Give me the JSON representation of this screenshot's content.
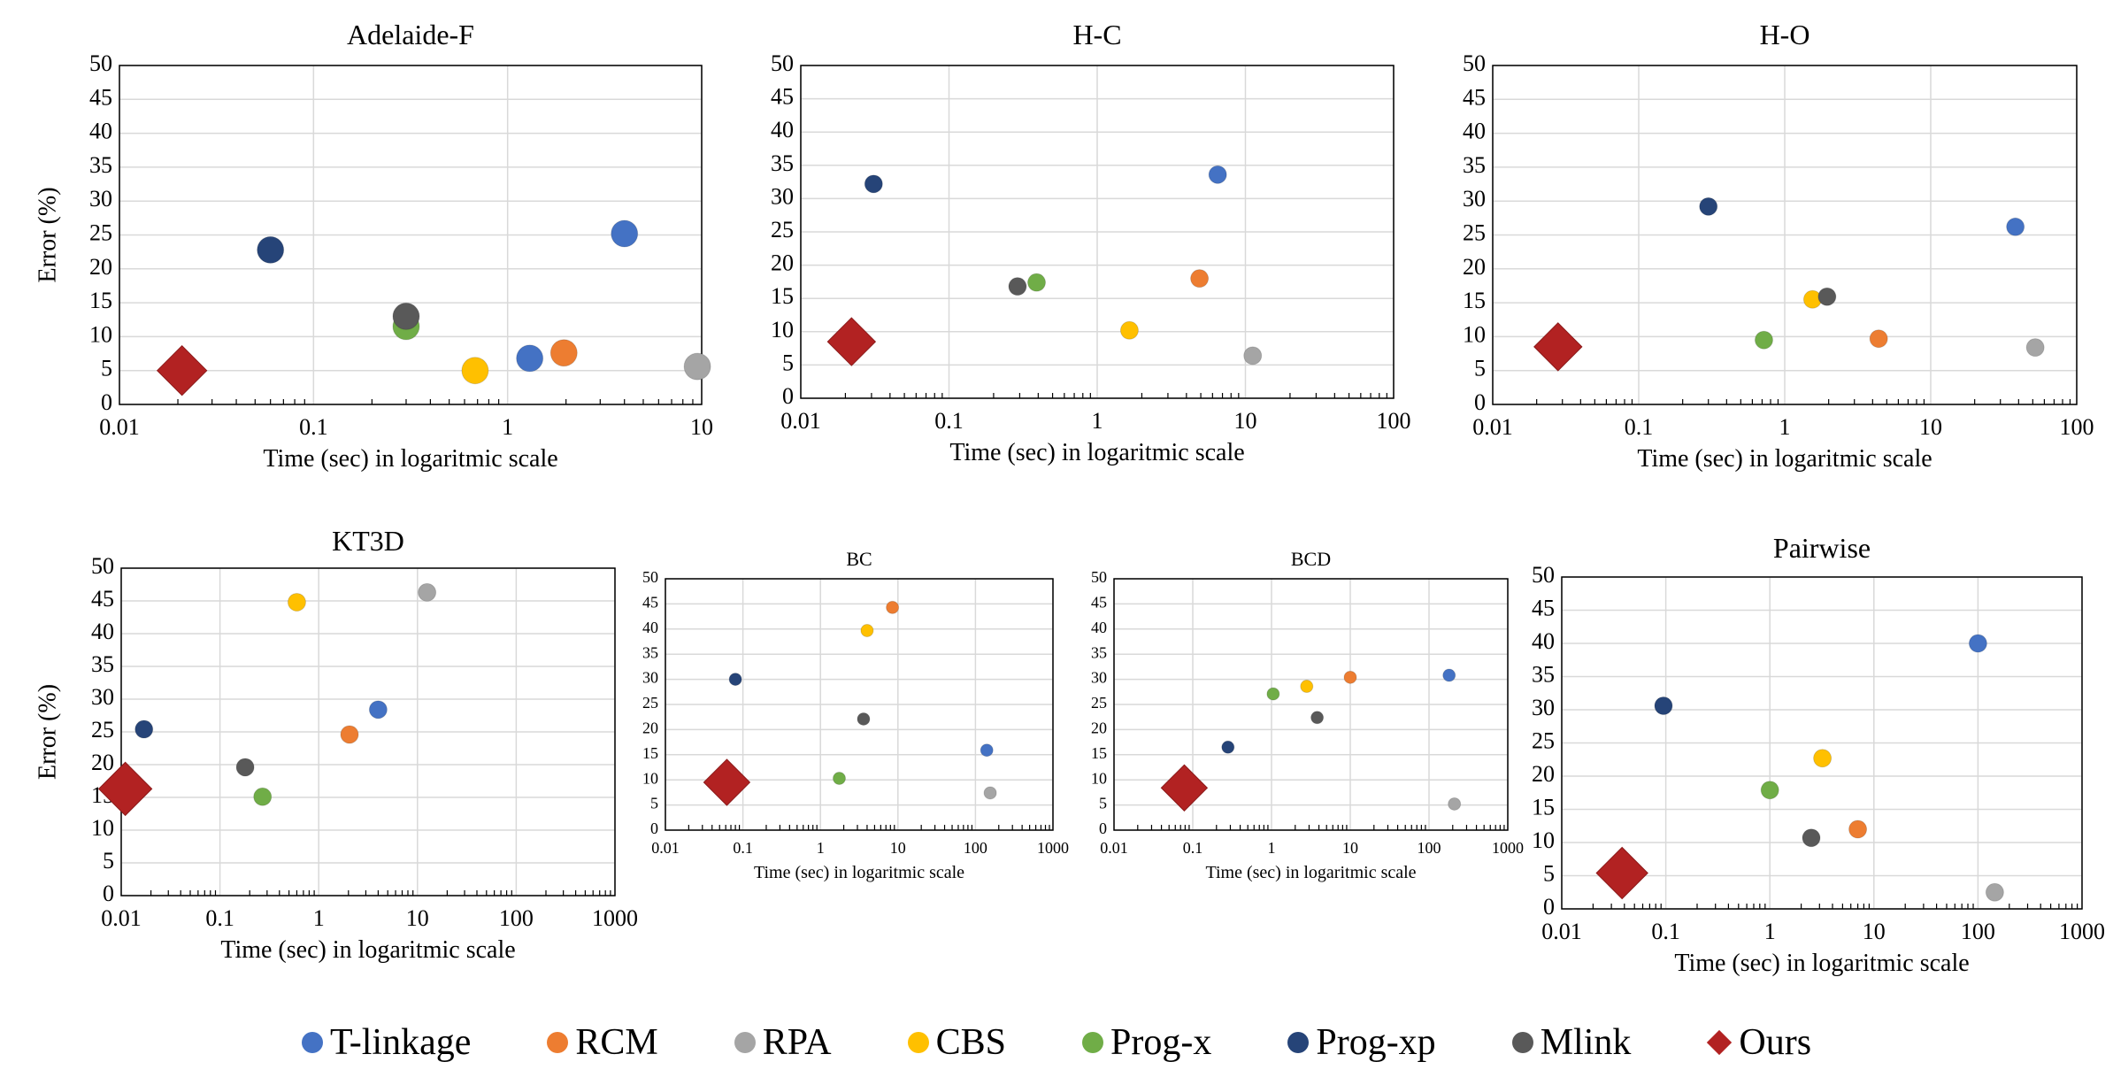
{
  "colors": {
    "T-linkage": "#4472C4",
    "RCM": "#ED7D31",
    "RPA": "#A5A5A5",
    "CBS": "#FFC000",
    "Prog-x": "#70AD47",
    "Prog-xp": "#264478",
    "Mlink": "#595959",
    "Ours": "#B22222"
  },
  "legend": [
    {
      "name": "T-linkage",
      "label": "T-linkage",
      "marker": "circle"
    },
    {
      "name": "RCM",
      "label": "RCM",
      "marker": "circle"
    },
    {
      "name": "RPA",
      "label": "RPA",
      "marker": "circle"
    },
    {
      "name": "CBS",
      "label": "CBS",
      "marker": "circle"
    },
    {
      "name": "Prog-x",
      "label": "Prog-x",
      "marker": "circle"
    },
    {
      "name": "Prog-xp",
      "label": "Prog-xp",
      "marker": "circle"
    },
    {
      "name": "Mlink",
      "label": "Mlink",
      "marker": "circle"
    },
    {
      "name": "Ours",
      "label": "Ours",
      "marker": "diamond"
    }
  ],
  "chart_data": [
    {
      "type": "scatter",
      "title": "Adelaide-F",
      "xlabel": "Time (sec) in logaritmic scale",
      "ylabel": "Error (%)",
      "xscale": "log",
      "xlim": [
        0.01,
        10
      ],
      "ylim": [
        0,
        50
      ],
      "xticks": [
        "0.01",
        "0.1",
        "1",
        "10"
      ],
      "yticks": [
        "0",
        "5",
        "10",
        "15",
        "20",
        "25",
        "30",
        "35",
        "40",
        "45",
        "50"
      ],
      "grid": true,
      "points": [
        {
          "series": "Prog-xp",
          "x": 0.06,
          "y": 22.8
        },
        {
          "series": "T-linkage",
          "x": 4.0,
          "y": 25.2
        },
        {
          "series": "Prog-x",
          "x": 0.3,
          "y": 11.5
        },
        {
          "series": "Mlink",
          "x": 0.3,
          "y": 13.0
        },
        {
          "series": "CBS",
          "x": 0.68,
          "y": 5.0
        },
        {
          "series": "T-linkage",
          "x": 1.3,
          "y": 6.8
        },
        {
          "series": "RCM",
          "x": 1.95,
          "y": 7.6
        },
        {
          "series": "RPA",
          "x": 9.5,
          "y": 5.6
        },
        {
          "series": "Ours",
          "x": 0.021,
          "y": 5.0
        }
      ]
    },
    {
      "type": "scatter",
      "title": "H-C",
      "xlabel": "Time (sec) in logaritmic scale",
      "ylabel": "",
      "xscale": "log",
      "xlim": [
        0.01,
        100
      ],
      "ylim": [
        0,
        50
      ],
      "xticks": [
        "0.01",
        "0.1",
        "1",
        "10",
        "100"
      ],
      "yticks": [
        "0",
        "5",
        "10",
        "15",
        "20",
        "25",
        "30",
        "35",
        "40",
        "45",
        "50"
      ],
      "grid": true,
      "points": [
        {
          "series": "Prog-xp",
          "x": 0.031,
          "y": 32.2
        },
        {
          "series": "T-linkage",
          "x": 6.5,
          "y": 33.6
        },
        {
          "series": "Mlink",
          "x": 0.29,
          "y": 16.8
        },
        {
          "series": "Prog-x",
          "x": 0.39,
          "y": 17.4
        },
        {
          "series": "RCM",
          "x": 4.9,
          "y": 18.0
        },
        {
          "series": "CBS",
          "x": 1.65,
          "y": 10.2
        },
        {
          "series": "RPA",
          "x": 11.2,
          "y": 6.4
        },
        {
          "series": "Ours",
          "x": 0.022,
          "y": 8.5
        }
      ]
    },
    {
      "type": "scatter",
      "title": "H-O",
      "xlabel": "Time (sec) in logaritmic scale",
      "ylabel": "",
      "xscale": "log",
      "xlim": [
        0.01,
        100
      ],
      "ylim": [
        0,
        50
      ],
      "xticks": [
        "0.01",
        "0.1",
        "1",
        "10",
        "100"
      ],
      "yticks": [
        "0",
        "5",
        "10",
        "15",
        "20",
        "25",
        "30",
        "35",
        "40",
        "45",
        "50"
      ],
      "grid": true,
      "points": [
        {
          "series": "Prog-xp",
          "x": 0.3,
          "y": 29.2
        },
        {
          "series": "T-linkage",
          "x": 38,
          "y": 26.2
        },
        {
          "series": "CBS",
          "x": 1.55,
          "y": 15.5
        },
        {
          "series": "Mlink",
          "x": 1.95,
          "y": 15.9
        },
        {
          "series": "Prog-x",
          "x": 0.72,
          "y": 9.5
        },
        {
          "series": "RCM",
          "x": 4.4,
          "y": 9.7
        },
        {
          "series": "RPA",
          "x": 52,
          "y": 8.4
        },
        {
          "series": "Ours",
          "x": 0.028,
          "y": 8.5
        }
      ]
    },
    {
      "type": "scatter",
      "title": "KT3D",
      "xlabel": "Time (sec) in logaritmic scale",
      "ylabel": "Error (%)",
      "xscale": "log",
      "xlim": [
        0.01,
        1000
      ],
      "ylim": [
        0,
        50
      ],
      "xticks": [
        "0.01",
        "0.1",
        "1",
        "10",
        "100",
        "1000"
      ],
      "yticks": [
        "0",
        "5",
        "10",
        "15",
        "20",
        "25",
        "30",
        "35",
        "40",
        "45",
        "50"
      ],
      "grid": true,
      "points": [
        {
          "series": "CBS",
          "x": 0.6,
          "y": 44.8
        },
        {
          "series": "RPA",
          "x": 12.5,
          "y": 46.3
        },
        {
          "series": "T-linkage",
          "x": 4.0,
          "y": 28.4
        },
        {
          "series": "RCM",
          "x": 2.05,
          "y": 24.6
        },
        {
          "series": "Prog-xp",
          "x": 0.017,
          "y": 25.4
        },
        {
          "series": "Mlink",
          "x": 0.18,
          "y": 19.6
        },
        {
          "series": "Prog-x",
          "x": 0.27,
          "y": 15.1
        },
        {
          "series": "Ours",
          "x": 0.011,
          "y": 16.3
        }
      ]
    },
    {
      "type": "scatter",
      "title": "BC",
      "xlabel": "Time (sec) in logaritmic scale",
      "ylabel": "",
      "xscale": "log",
      "xlim": [
        0.01,
        1000
      ],
      "ylim": [
        0,
        50
      ],
      "xticks": [
        "0.01",
        "0.1",
        "1",
        "10",
        "100",
        "1000"
      ],
      "yticks": [
        "0",
        "5",
        "10",
        "15",
        "20",
        "25",
        "30",
        "35",
        "40",
        "45",
        "50"
      ],
      "grid": true,
      "points": [
        {
          "series": "RCM",
          "x": 8.5,
          "y": 44.3
        },
        {
          "series": "CBS",
          "x": 4.0,
          "y": 39.7
        },
        {
          "series": "Prog-xp",
          "x": 0.08,
          "y": 30.0
        },
        {
          "series": "Mlink",
          "x": 3.6,
          "y": 22.1
        },
        {
          "series": "T-linkage",
          "x": 140,
          "y": 15.9
        },
        {
          "series": "Prog-x",
          "x": 1.75,
          "y": 10.3
        },
        {
          "series": "RPA",
          "x": 155,
          "y": 7.4
        },
        {
          "series": "Ours",
          "x": 0.062,
          "y": 9.5
        }
      ]
    },
    {
      "type": "scatter",
      "title": "BCD",
      "xlabel": "Time (sec) in logaritmic scale",
      "ylabel": "",
      "xscale": "log",
      "xlim": [
        0.01,
        1000
      ],
      "ylim": [
        0,
        50
      ],
      "xticks": [
        "0.01",
        "0.1",
        "1",
        "10",
        "100",
        "1000"
      ],
      "yticks": [
        "0",
        "5",
        "10",
        "15",
        "20",
        "25",
        "30",
        "35",
        "40",
        "45",
        "50"
      ],
      "grid": true,
      "points": [
        {
          "series": "T-linkage",
          "x": 180,
          "y": 30.8
        },
        {
          "series": "RCM",
          "x": 10,
          "y": 30.4
        },
        {
          "series": "CBS",
          "x": 2.8,
          "y": 28.6
        },
        {
          "series": "Prog-x",
          "x": 1.05,
          "y": 27.1
        },
        {
          "series": "Mlink",
          "x": 3.8,
          "y": 22.4
        },
        {
          "series": "Prog-xp",
          "x": 0.28,
          "y": 16.5
        },
        {
          "series": "RPA",
          "x": 210,
          "y": 5.2
        },
        {
          "series": "Ours",
          "x": 0.078,
          "y": 8.4
        }
      ]
    },
    {
      "type": "scatter",
      "title": "Pairwise",
      "xlabel": "Time (sec) in logaritmic scale",
      "ylabel": "",
      "xscale": "log",
      "xlim": [
        0.01,
        1000
      ],
      "ylim": [
        0,
        50
      ],
      "xticks": [
        "0.01",
        "0.1",
        "1",
        "10",
        "100",
        "1000"
      ],
      "yticks": [
        "0",
        "5",
        "10",
        "15",
        "20",
        "25",
        "30",
        "35",
        "40",
        "45",
        "50"
      ],
      "grid": true,
      "points": [
        {
          "series": "T-linkage",
          "x": 100,
          "y": 40.0
        },
        {
          "series": "Prog-xp",
          "x": 0.095,
          "y": 30.6
        },
        {
          "series": "CBS",
          "x": 3.2,
          "y": 22.7
        },
        {
          "series": "Prog-x",
          "x": 1.0,
          "y": 17.9
        },
        {
          "series": "RCM",
          "x": 7.0,
          "y": 12.0
        },
        {
          "series": "Mlink",
          "x": 2.5,
          "y": 10.7
        },
        {
          "series": "RPA",
          "x": 145,
          "y": 2.5
        },
        {
          "series": "Ours",
          "x": 0.038,
          "y": 5.4
        }
      ]
    }
  ]
}
